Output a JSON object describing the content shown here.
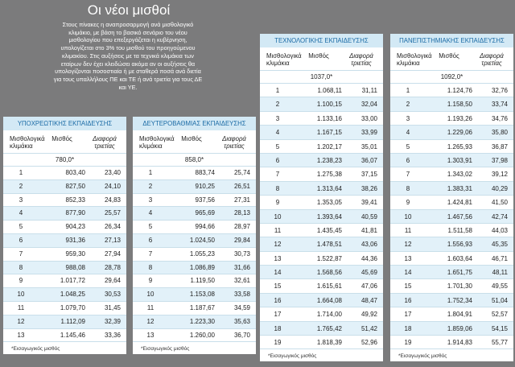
{
  "header": {
    "title": "Οι νέοι μισθοί",
    "paragraph": [
      "Στους πίνακες η αναπροσαρμογή ανά μισθολογικό",
      "κλιμάκιο, με βάση το βασικό σενάριο του νέου",
      "μισθολογίου που επεξεργάζεται η κυβέρνηση,",
      "υπολογίζεται στο 3% του μισθού του προηγούμενου",
      "κλιμακίου. Στις αυξήσεις με τα τεχνικά κλιμάκια των",
      "εταίρων δεν έχει κλειδώσει ακόμα αν οι αυξήσεις θα",
      "υπολογίζονται ποσοστιαία ή με σταθερά ποσά ανά διετία",
      "για τους υπαλλήλους ΠΕ και ΤΕ ή ανά τριετία για τους ΔΕ",
      "και ΥΕ."
    ]
  },
  "tables": [
    {
      "title": "ΥΠΟΧΡΕΩΤΙΚΗΣ ΕΚΠΑΙΔΕΥΣΗΣ",
      "columns": [
        "Μισθολογικά κλιμάκια",
        "Μισθός",
        "Διαφορά τριετίας"
      ],
      "start": "780,0*",
      "rows": [
        [
          "1",
          "803,40",
          "23,40"
        ],
        [
          "2",
          "827,50",
          "24,10"
        ],
        [
          "3",
          "852,33",
          "24,83"
        ],
        [
          "4",
          "877,90",
          "25,57"
        ],
        [
          "5",
          "904,23",
          "26,34"
        ],
        [
          "6",
          "931,36",
          "27,13"
        ],
        [
          "7",
          "959,30",
          "27,94"
        ],
        [
          "8",
          "988,08",
          "28,78"
        ],
        [
          "9",
          "1.017,72",
          "29,64"
        ],
        [
          "10",
          "1.048,25",
          "30,53"
        ],
        [
          "11",
          "1.079,70",
          "31,45"
        ],
        [
          "12",
          "1.112,09",
          "32,39"
        ],
        [
          "13",
          "1.145,46",
          "33,36"
        ]
      ],
      "note": "*Εισαγωγικός μισθός"
    },
    {
      "title": "ΔΕΥΤΕΡΟΒΑΘΜΙΑΣ ΕΚΠΑΙΔΕΥΣΗΣ",
      "columns": [
        "Μισθολογικά κλιμάκια",
        "Μισθός",
        "Διαφορά τριετίας"
      ],
      "start": "858,0*",
      "rows": [
        [
          "1",
          "883,74",
          "25,74"
        ],
        [
          "2",
          "910,25",
          "26,51"
        ],
        [
          "3",
          "937,56",
          "27,31"
        ],
        [
          "4",
          "965,69",
          "28,13"
        ],
        [
          "5",
          "994,66",
          "28,97"
        ],
        [
          "6",
          "1.024,50",
          "29,84"
        ],
        [
          "7",
          "1.055,23",
          "30,73"
        ],
        [
          "8",
          "1.086,89",
          "31,66"
        ],
        [
          "9",
          "1.119,50",
          "32,61"
        ],
        [
          "10",
          "1.153,08",
          "33,58"
        ],
        [
          "11",
          "1.187,67",
          "34,59"
        ],
        [
          "12",
          "1.223,30",
          "35,63"
        ],
        [
          "13",
          "1.260,00",
          "36,70"
        ]
      ],
      "note": "*Εισαγωγικός μισθός"
    },
    {
      "title": "ΤΕΧΝΟΛΟΓΙΚΗΣ ΕΚΠΑΙΔΕΥΣΗΣ",
      "columns": [
        "Μισθολογικά κλιμάκια",
        "Μισθός",
        "Διαφορά τριετίας"
      ],
      "start": "1037,0*",
      "rows": [
        [
          "1",
          "1.068,11",
          "31,11"
        ],
        [
          "2",
          "1.100,15",
          "32,04"
        ],
        [
          "3",
          "1.133,16",
          "33,00"
        ],
        [
          "4",
          "1.167,15",
          "33,99"
        ],
        [
          "5",
          "1.202,17",
          "35,01"
        ],
        [
          "6",
          "1.238,23",
          "36,07"
        ],
        [
          "7",
          "1.275,38",
          "37,15"
        ],
        [
          "8",
          "1.313,64",
          "38,26"
        ],
        [
          "9",
          "1.353,05",
          "39,41"
        ],
        [
          "10",
          "1.393,64",
          "40,59"
        ],
        [
          "11",
          "1.435,45",
          "41,81"
        ],
        [
          "12",
          "1.478,51",
          "43,06"
        ],
        [
          "13",
          "1.522,87",
          "44,36"
        ],
        [
          "14",
          "1.568,56",
          "45,69"
        ],
        [
          "15",
          "1.615,61",
          "47,06"
        ],
        [
          "16",
          "1.664,08",
          "48,47"
        ],
        [
          "17",
          "1.714,00",
          "49,92"
        ],
        [
          "18",
          "1.765,42",
          "51,42"
        ],
        [
          "19",
          "1.818,39",
          "52,96"
        ]
      ],
      "note": "*Εισαγωγικός μισθός"
    },
    {
      "title": "ΠΑΝΕΠΙΣΤΗΜΙΑΚΗΣ ΕΚΠΑΙΔΕΥΣΗΣ",
      "columns": [
        "Μισθολογικά κλιμάκια",
        "Μισθός",
        "Διαφορά τριετίας"
      ],
      "start": "1092,0*",
      "rows": [
        [
          "1",
          "1.124,76",
          "32,76"
        ],
        [
          "2",
          "1.158,50",
          "33,74"
        ],
        [
          "3",
          "1.193,26",
          "34,76"
        ],
        [
          "4",
          "1.229,06",
          "35,80"
        ],
        [
          "5",
          "1.265,93",
          "36,87"
        ],
        [
          "6",
          "1.303,91",
          "37,98"
        ],
        [
          "7",
          "1.343,02",
          "39,12"
        ],
        [
          "8",
          "1.383,31",
          "40,29"
        ],
        [
          "9",
          "1.424,81",
          "41,50"
        ],
        [
          "10",
          "1.467,56",
          "42,74"
        ],
        [
          "11",
          "1.511,58",
          "44,03"
        ],
        [
          "12",
          "1.556,93",
          "45,35"
        ],
        [
          "13",
          "1.603,64",
          "46,71"
        ],
        [
          "14",
          "1.651,75",
          "48,11"
        ],
        [
          "15",
          "1.701,30",
          "49,55"
        ],
        [
          "16",
          "1.752,34",
          "51,04"
        ],
        [
          "17",
          "1.804,91",
          "52,57"
        ],
        [
          "18",
          "1.859,06",
          "54,15"
        ],
        [
          "19",
          "1.914,83",
          "55,77"
        ]
      ],
      "note": "*Εισαγωγικός μισθός"
    }
  ]
}
